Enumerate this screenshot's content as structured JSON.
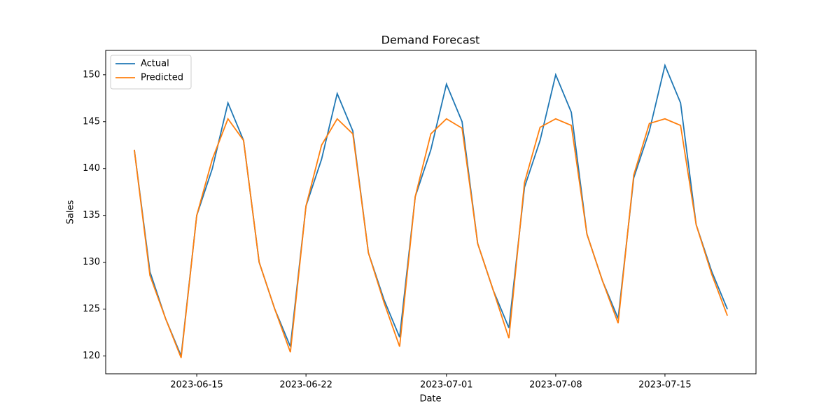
{
  "chart_data": {
    "type": "line",
    "title": "Demand Forecast",
    "x_label": "Date",
    "y_label": "Sales",
    "x": [
      "2023-06-11",
      "2023-06-12",
      "2023-06-13",
      "2023-06-14",
      "2023-06-15",
      "2023-06-16",
      "2023-06-17",
      "2023-06-18",
      "2023-06-19",
      "2023-06-20",
      "2023-06-21",
      "2023-06-22",
      "2023-06-23",
      "2023-06-24",
      "2023-06-25",
      "2023-06-26",
      "2023-06-27",
      "2023-06-28",
      "2023-06-29",
      "2023-06-30",
      "2023-07-01",
      "2023-07-02",
      "2023-07-03",
      "2023-07-04",
      "2023-07-05",
      "2023-07-06",
      "2023-07-07",
      "2023-07-08",
      "2023-07-09",
      "2023-07-10",
      "2023-07-11",
      "2023-07-12",
      "2023-07-13",
      "2023-07-14",
      "2023-07-15",
      "2023-07-16",
      "2023-07-17",
      "2023-07-18",
      "2023-07-19"
    ],
    "series": [
      {
        "name": "Actual",
        "color": "#1f77b4",
        "values": [
          142,
          129,
          124,
          120,
          135,
          140,
          147,
          143,
          130,
          125,
          121,
          136,
          141,
          148,
          144,
          131,
          126,
          122,
          137,
          142,
          149,
          145,
          132,
          127,
          123,
          138,
          143,
          150,
          146,
          133,
          128,
          124,
          139,
          144,
          151,
          147,
          134,
          129,
          125
        ]
      },
      {
        "name": "Predicted",
        "color": "#ff7f0e",
        "values": [
          142,
          128.6,
          124,
          119.8,
          135,
          141,
          145.3,
          143,
          130,
          125,
          120.4,
          136,
          142.5,
          145.3,
          143.7,
          131,
          125.7,
          121,
          137,
          143.7,
          145.3,
          144.3,
          132,
          127,
          121.9,
          138.5,
          144.4,
          145.3,
          144.6,
          133,
          128,
          123.5,
          139.3,
          144.8,
          145.3,
          144.6,
          134,
          128.7,
          124.3
        ]
      }
    ],
    "xlim": [
      "2023-06-09T04:00",
      "2023-07-20T20:00"
    ],
    "xticks": [
      "2023-06-15",
      "2023-06-22",
      "2023-07-01",
      "2023-07-08",
      "2023-07-15"
    ],
    "ylim": [
      118.1,
      152.6
    ],
    "yticks": [
      120,
      125,
      130,
      135,
      140,
      145,
      150
    ],
    "legend": "upper left",
    "grid": false
  }
}
